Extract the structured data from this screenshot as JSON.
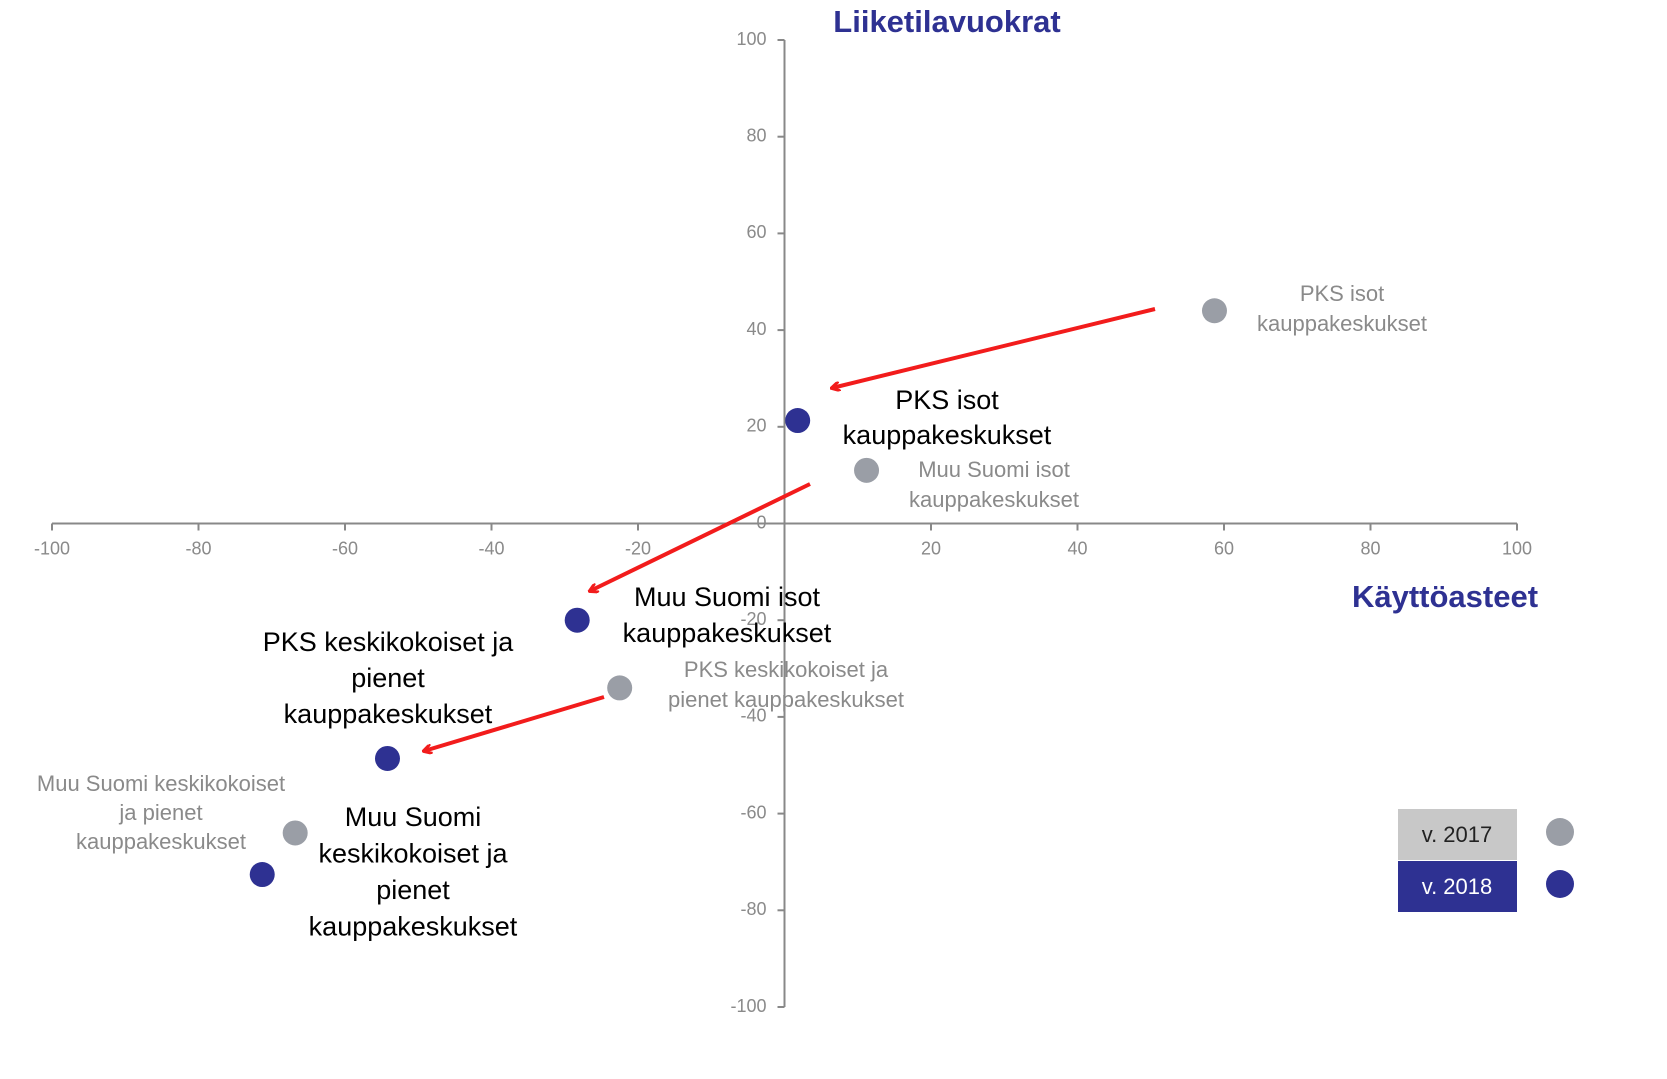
{
  "chart_data": {
    "type": "scatter",
    "x_label": "Käyttöasteet",
    "y_label": "Liiketilavuokrat",
    "xlim": [
      -100,
      100
    ],
    "ylim": [
      -100,
      100
    ],
    "xticks": [
      -100,
      -80,
      -60,
      -40,
      -20,
      20,
      40,
      60,
      80,
      100
    ],
    "yticks": [
      -100,
      -80,
      -60,
      -40,
      -20,
      0,
      20,
      40,
      60,
      80,
      100
    ],
    "series": [
      {
        "name": "v. 2017",
        "color": "#9a9ea6",
        "x": [
          58.7,
          11.2,
          -22.5,
          -66.8
        ],
        "y": [
          44,
          11,
          -34,
          -64
        ],
        "labels": [
          [
            "PKS isot",
            "kauppakeskukset"
          ],
          [
            "Muu Suomi isot",
            "kauppakeskukset"
          ],
          [
            "PKS keskikokoiset ja",
            "pienet kauppakeskukset"
          ],
          [
            "Muu Suomi keskikokoiset",
            "ja pienet",
            "kauppakeskukset"
          ]
        ]
      },
      {
        "name": "v. 2018",
        "color": "#2e3192",
        "x": [
          1.8,
          -28.3,
          -54.2,
          -71.3
        ],
        "y": [
          21.3,
          -20,
          -48.6,
          -72.6
        ],
        "labels": [
          [
            "PKS isot",
            "kauppakeskukset"
          ],
          [
            "Muu Suomi isot",
            "kauppakeskukset"
          ],
          [
            "PKS keskikokoiset ja",
            "pienet",
            "kauppakeskukset"
          ],
          [
            "Muu Suomi",
            "keskikokoiset ja",
            "pienet",
            "kauppakeskukset"
          ]
        ]
      }
    ]
  }
}
